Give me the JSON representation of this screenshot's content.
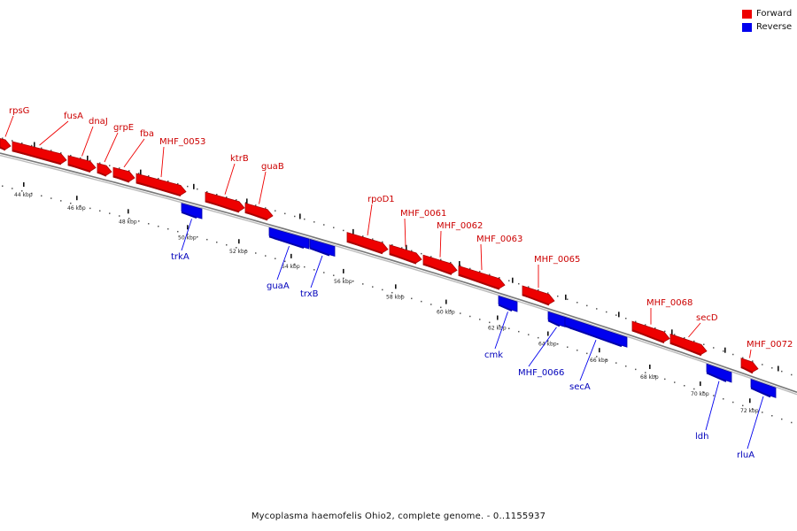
{
  "legend": {
    "forward_label": "Forward",
    "reverse_label": "Reverse",
    "forward_color": "#ee0000",
    "reverse_color": "#0000ee"
  },
  "caption": "Mycoplasma haemofelis Ohio2, complete genome. - 0..1155937",
  "colors": {
    "forward": "#ee0000",
    "forward_dark": "#aa0000",
    "reverse": "#0000ee",
    "reverse_dark": "#0000aa",
    "backbone": "#888888",
    "tick": "#111111"
  },
  "scale_labels": [
    "44 kbp",
    "46 kbp",
    "48 kbp",
    "50 kbp",
    "52 kbp",
    "54 kbp",
    "56 kbp",
    "58 kbp",
    "60 kbp",
    "62 kbp",
    "64 kbp",
    "66 kbp",
    "68 kbp",
    "70 kbp",
    "72 kbp"
  ],
  "forward_genes": [
    {
      "name": "rpsG"
    },
    {
      "name": "fusA"
    },
    {
      "name": "dnaJ"
    },
    {
      "name": "grpE"
    },
    {
      "name": "fba"
    },
    {
      "name": "MHF_0053"
    },
    {
      "name": "ktrB"
    },
    {
      "name": "guaB"
    },
    {
      "name": "rpoD1"
    },
    {
      "name": "MHF_0061"
    },
    {
      "name": "MHF_0062"
    },
    {
      "name": "MHF_0063"
    },
    {
      "name": "MHF_0065"
    },
    {
      "name": "MHF_0068"
    },
    {
      "name": "secD"
    },
    {
      "name": "MHF_0072"
    }
  ],
  "reverse_genes": [
    {
      "name": "trkA"
    },
    {
      "name": "guaA"
    },
    {
      "name": "trxB"
    },
    {
      "name": "cmk"
    },
    {
      "name": "MHF_0066"
    },
    {
      "name": "secA"
    },
    {
      "name": "ldh"
    },
    {
      "name": "rluA"
    }
  ]
}
